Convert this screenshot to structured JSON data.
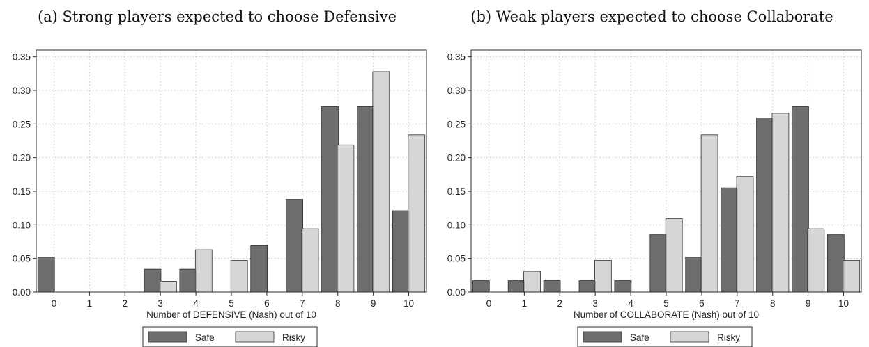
{
  "colors": {
    "safe": "#6e6e6e",
    "risky": "#d6d6d6",
    "overlap": "#a5a5a5",
    "border": "#2b2b2b",
    "grid": "#c8c8c8"
  },
  "chart_data": [
    {
      "type": "bar",
      "title": "(a) Strong players expected to choose Defensive",
      "xlabel": "Number of DEFENSIVE (Nash) out of 10",
      "ylabel": "",
      "categories": [
        "0",
        "1",
        "2",
        "3",
        "4",
        "5",
        "6",
        "7",
        "8",
        "9",
        "10"
      ],
      "ylim": [
        0,
        0.36
      ],
      "yticks": [
        "0.00",
        "0.05",
        "0.10",
        "0.15",
        "0.20",
        "0.25",
        "0.30",
        "0.35"
      ],
      "grid": true,
      "legend_position": "bottom",
      "series": [
        {
          "name": "Safe",
          "values": [
            0.052,
            0,
            0,
            0.034,
            0.034,
            0,
            0.069,
            0.138,
            0.276,
            0.276,
            0.121
          ]
        },
        {
          "name": "Risky",
          "values": [
            0,
            0,
            0,
            0.016,
            0.063,
            0.047,
            0,
            0.094,
            0.219,
            0.328,
            0.234
          ]
        }
      ]
    },
    {
      "type": "bar",
      "title": "(b) Weak players expected to choose Collaborate",
      "xlabel": "Number of COLLABORATE (Nash) out of 10",
      "ylabel": "",
      "categories": [
        "0",
        "1",
        "2",
        "3",
        "4",
        "5",
        "6",
        "7",
        "8",
        "9",
        "10"
      ],
      "ylim": [
        0,
        0.36
      ],
      "yticks": [
        "0.00",
        "0.05",
        "0.10",
        "0.15",
        "0.20",
        "0.25",
        "0.30",
        "0.35"
      ],
      "grid": true,
      "legend_position": "bottom",
      "series": [
        {
          "name": "Safe",
          "values": [
            0.017,
            0.017,
            0.017,
            0.017,
            0.017,
            0.086,
            0.052,
            0.155,
            0.259,
            0.276,
            0.086
          ]
        },
        {
          "name": "Risky",
          "values": [
            0,
            0.031,
            0,
            0.047,
            0,
            0.109,
            0.234,
            0.172,
            0.266,
            0.094,
            0.047
          ]
        }
      ]
    }
  ]
}
